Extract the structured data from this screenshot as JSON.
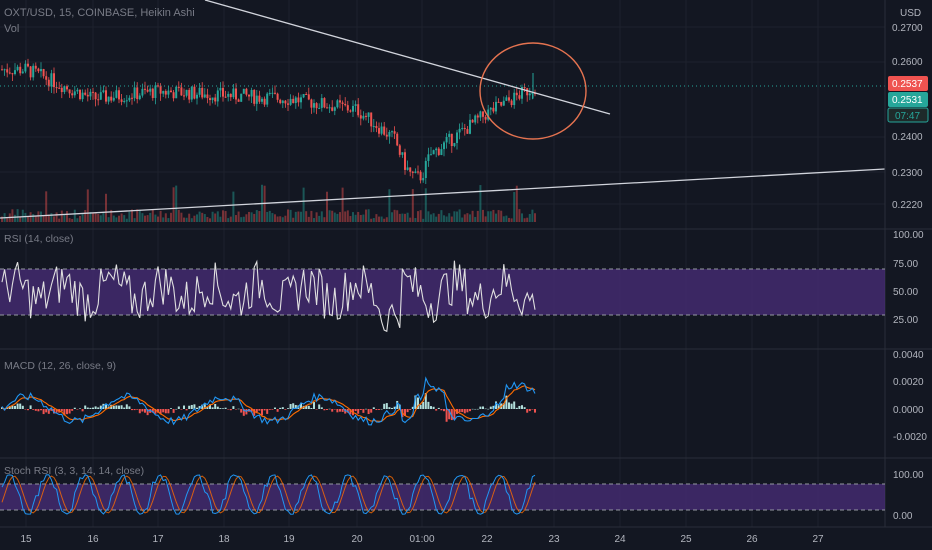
{
  "header": {
    "symbol_line": "OXT/USD, 15, COINBASE, Heikin Ashi",
    "volume_label": "Vol"
  },
  "price_axis": {
    "unit": "USD",
    "ticks": [
      "0.2700",
      "0.2600",
      "0.2400",
      "0.2300",
      "0.2220"
    ],
    "last_price_tag": "0.2537",
    "current_price_tag": "0.2531",
    "countdown_tag": "07:47"
  },
  "indicators": {
    "rsi": {
      "title": "RSI (14, close)",
      "ticks": [
        "100.00",
        "75.00",
        "50.00",
        "25.00"
      ]
    },
    "macd": {
      "title": "MACD (12, 26, close, 9)",
      "ticks": [
        "0.0040",
        "0.0020",
        "0.0000",
        "-0.0020"
      ]
    },
    "stoch": {
      "title": "Stoch RSI (3, 3, 14, 14, close)",
      "ticks": [
        "100.00",
        "0.00"
      ]
    }
  },
  "time_axis": {
    "labels": [
      "15",
      "16",
      "17",
      "18",
      "19",
      "20",
      "01:00",
      "22",
      "23",
      "24",
      "25",
      "26",
      "27"
    ]
  },
  "colors": {
    "up": "#26a69a",
    "down": "#ef5350",
    "rsi_line": "#e0e0e0",
    "band": "#4a2d7a",
    "macd_line": "#2196f3",
    "signal_line": "#ff6d00",
    "annotation_circle": "#e57350",
    "trendline": "#d1d4dc"
  },
  "chart_data": {
    "type": "line",
    "title": "OXT/USD, 15, COINBASE, Heikin Ashi",
    "xlabel": "",
    "ylabel": "USD",
    "x": [
      "15",
      "16",
      "17",
      "18",
      "19",
      "20",
      "01:00",
      "22",
      "23"
    ],
    "series": [
      {
        "name": "OXT/USD",
        "values": [
          0.258,
          0.25,
          0.252,
          0.251,
          0.25,
          0.247,
          0.233,
          0.246,
          0.2537
        ]
      }
    ],
    "ylim": [
      0.22,
      0.272
    ],
    "grid": true,
    "indicators": {
      "rsi": {
        "range": [
          0,
          100
        ],
        "upper_band": 70,
        "lower_band": 30
      },
      "macd": {
        "range": [
          -0.003,
          0.004
        ]
      },
      "stoch_rsi": {
        "range": [
          0,
          100
        ],
        "upper_band": 80,
        "lower_band": 20
      }
    }
  }
}
